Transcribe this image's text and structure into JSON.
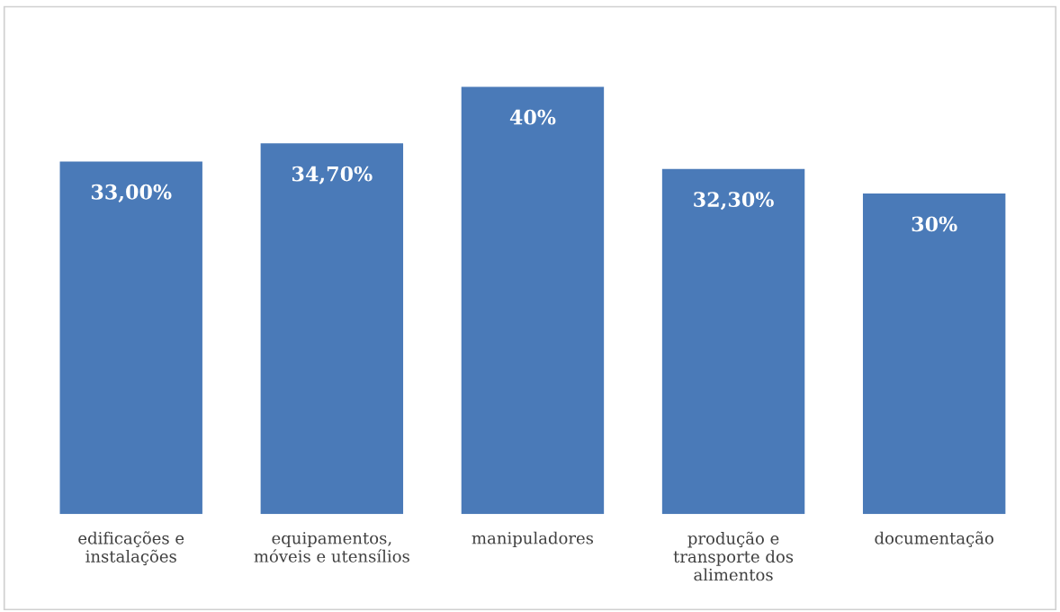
{
  "chart_data": {
    "type": "bar",
    "categories": [
      "edificações e\ninstalações",
      "equipamentos,\nmóveis e utensílios",
      "manipuladores",
      "produção e\ntransporte dos\nalimentos",
      "documentação"
    ],
    "values": [
      33.0,
      34.7,
      40,
      32.3,
      30
    ],
    "value_labels": [
      "33,00%",
      "34,70%",
      "40%",
      "32,30%",
      "30%"
    ],
    "color": "#4a7ab8",
    "tick_labels": "x",
    "grid": false,
    "legend": false
  }
}
